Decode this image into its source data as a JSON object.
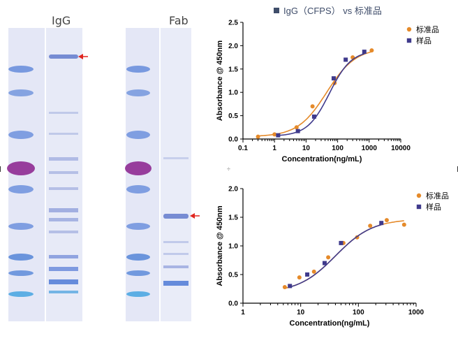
{
  "gel": {
    "lanes": [
      {
        "label": "IgG"
      },
      {
        "label": "Fab"
      }
    ]
  },
  "chart_data": [
    {
      "type": "scatter",
      "title": "IgG（CFPS） vs 标准品",
      "xlabel": "Concentration(ng/mL)",
      "ylabel": "Absorbance @ 450nm",
      "xscale": "log",
      "xlim": [
        0.1,
        10000
      ],
      "ylim": [
        0.0,
        2.5
      ],
      "xticks": [
        "0.1",
        "1",
        "10",
        "100",
        "1000",
        "10000"
      ],
      "yticks": [
        "0.0",
        "0.5",
        "1.0",
        "1.5",
        "2.0",
        "2.5"
      ],
      "legend_position": "top-right",
      "series": [
        {
          "name": "标准品",
          "color": "#e58a2a",
          "marker": "circle",
          "x": [
            0.3,
            1.0,
            5.0,
            16,
            80,
            300,
            1200
          ],
          "y": [
            0.05,
            0.1,
            0.25,
            0.7,
            1.2,
            1.75,
            1.9
          ],
          "curve": {
            "bottom": 0.05,
            "top": 1.95,
            "ec50": 45,
            "hill": 0.95
          }
        },
        {
          "name": "样品",
          "color": "#3f3a8c",
          "marker": "square",
          "x": [
            1.3,
            5.5,
            18,
            75,
            180,
            700
          ],
          "y": [
            0.08,
            0.17,
            0.48,
            1.3,
            1.7,
            1.87
          ],
          "curve": {
            "bottom": 0.06,
            "top": 1.9,
            "ec50": 55,
            "hill": 1.25
          }
        }
      ]
    },
    {
      "type": "scatter",
      "title": "",
      "xlabel": "Concentration(ng/mL)",
      "ylabel": "Absorbance @ 450nm",
      "xscale": "log",
      "xlim": [
        1,
        1000
      ],
      "ylim": [
        0.0,
        2.0
      ],
      "xticks": [
        "1",
        "10",
        "100",
        "1000"
      ],
      "yticks": [
        "0.0",
        "0.5",
        "1.0",
        "1.5",
        "2.0"
      ],
      "legend_position": "top-right",
      "series": [
        {
          "name": "标准品",
          "color": "#e58a2a",
          "marker": "circle",
          "x": [
            5.3,
            9.5,
            17,
            30,
            55,
            95,
            160,
            310,
            620
          ],
          "y": [
            0.28,
            0.45,
            0.55,
            0.8,
            1.05,
            1.15,
            1.35,
            1.45,
            1.37
          ],
          "curve": {
            "bottom": 0.18,
            "top": 1.47,
            "ec50": 40,
            "hill": 1.35
          }
        },
        {
          "name": "样品",
          "color": "#3f3a8c",
          "marker": "square",
          "x": [
            6.5,
            13,
            26,
            50,
            250
          ],
          "y": [
            0.3,
            0.5,
            0.7,
            1.05,
            1.4
          ],
          "curve": {
            "bottom": 0.18,
            "top": 1.47,
            "ec50": 40,
            "hill": 1.35
          }
        }
      ]
    }
  ]
}
